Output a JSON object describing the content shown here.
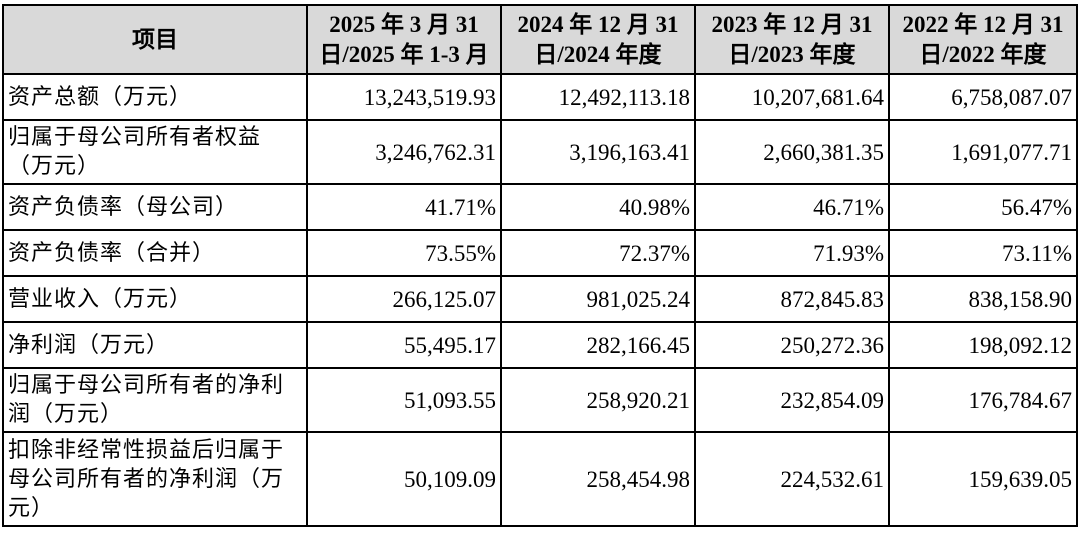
{
  "header": {
    "item": "项目",
    "periods": [
      "2025 年 3 月 31 日/2025 年 1-3 月",
      "2024 年 12 月 31 日/2024 年度",
      "2023 年 12 月 31 日/2023 年度",
      "2022 年 12 月 31 日/2022 年度"
    ]
  },
  "rows": [
    {
      "label": "资产总额（万元）",
      "values": [
        "13,243,519.93",
        "12,492,113.18",
        "10,207,681.64",
        "6,758,087.07"
      ]
    },
    {
      "label": "归属于母公司所有者权益（万元）",
      "values": [
        "3,246,762.31",
        "3,196,163.41",
        "2,660,381.35",
        "1,691,077.71"
      ]
    },
    {
      "label": "资产负债率（母公司）",
      "values": [
        "41.71%",
        "40.98%",
        "46.71%",
        "56.47%"
      ]
    },
    {
      "label": "资产负债率（合并）",
      "values": [
        "73.55%",
        "72.37%",
        "71.93%",
        "73.11%"
      ]
    },
    {
      "label": "营业收入（万元）",
      "values": [
        "266,125.07",
        "981,025.24",
        "872,845.83",
        "838,158.90"
      ]
    },
    {
      "label": "净利润（万元）",
      "values": [
        "55,495.17",
        "282,166.45",
        "250,272.36",
        "198,092.12"
      ]
    },
    {
      "label": "归属于母公司所有者的净利润（万元）",
      "values": [
        "51,093.55",
        "258,920.21",
        "232,854.09",
        "176,784.67"
      ]
    },
    {
      "label": "扣除非经常性损益后归属于母公司所有者的净利润（万元）",
      "values": [
        "50,109.09",
        "258,454.98",
        "224,532.61",
        "159,639.05"
      ]
    }
  ]
}
